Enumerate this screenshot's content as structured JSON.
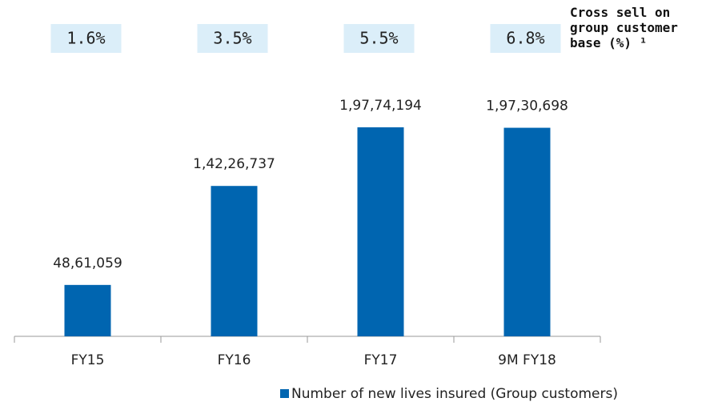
{
  "chart_data": {
    "type": "bar",
    "categories": [
      "FY15",
      "FY16",
      "FY17",
      "9M FY18"
    ],
    "series": [
      {
        "name": "Number of new lives insured (Group customers)",
        "color": "#0065b0",
        "values": [
          4861059,
          14226737,
          19774194,
          19730698
        ],
        "value_labels": [
          "48,61,059",
          "1,42,26,737",
          "1,97,74,194",
          "1,97,30,698"
        ]
      }
    ],
    "ylim": [
      0,
      25000000
    ],
    "legend": "bottom"
  },
  "cross_sell": {
    "title": "Cross sell on group customer base (%) ¹",
    "values": [
      1.6,
      3.5,
      5.5,
      6.8
    ],
    "value_labels": [
      "1.6%",
      "3.5%",
      "5.5%",
      "6.8%"
    ],
    "color": "#dbeef9"
  }
}
